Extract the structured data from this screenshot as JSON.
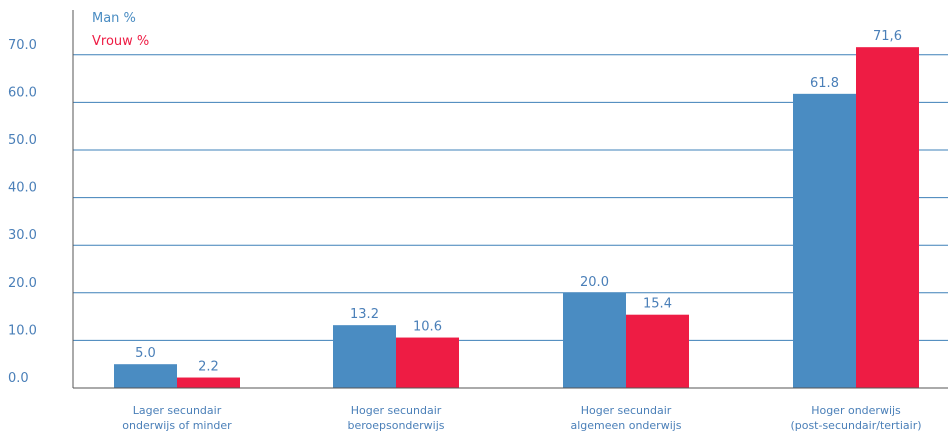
{
  "colors": {
    "man": "#4a8cc2",
    "vrouw": "#ee1c44",
    "grid": "#3e80b8",
    "text": "#4a7fb8"
  },
  "chart_data": {
    "type": "bar",
    "title": "",
    "xlabel": "",
    "ylabel": "",
    "ylim": [
      0,
      75
    ],
    "yticks": [
      "0.0",
      "10.0",
      "20.0",
      "30.0",
      "40.0",
      "50.0",
      "60.0",
      "70.0"
    ],
    "grid": true,
    "legend_position": "top-left",
    "categories": [
      [
        "Lager secundair",
        "onderwijs of minder"
      ],
      [
        "Hoger secundair",
        "beroepsonderwijs"
      ],
      [
        "Hoger secundair",
        "algemeen onderwijs"
      ],
      [
        "Hoger onderwijs",
        "(post-secundair/tertiair)"
      ]
    ],
    "series": [
      {
        "name": "Man %",
        "values": [
          5.0,
          13.2,
          20.0,
          61.8
        ],
        "labels": [
          "5.0",
          "13.2",
          "20.0",
          "61.8"
        ]
      },
      {
        "name": "Vrouw %",
        "values": [
          2.2,
          10.6,
          15.4,
          71.6
        ],
        "labels": [
          "2.2",
          "10.6",
          "15.4",
          "71,6"
        ]
      }
    ]
  }
}
